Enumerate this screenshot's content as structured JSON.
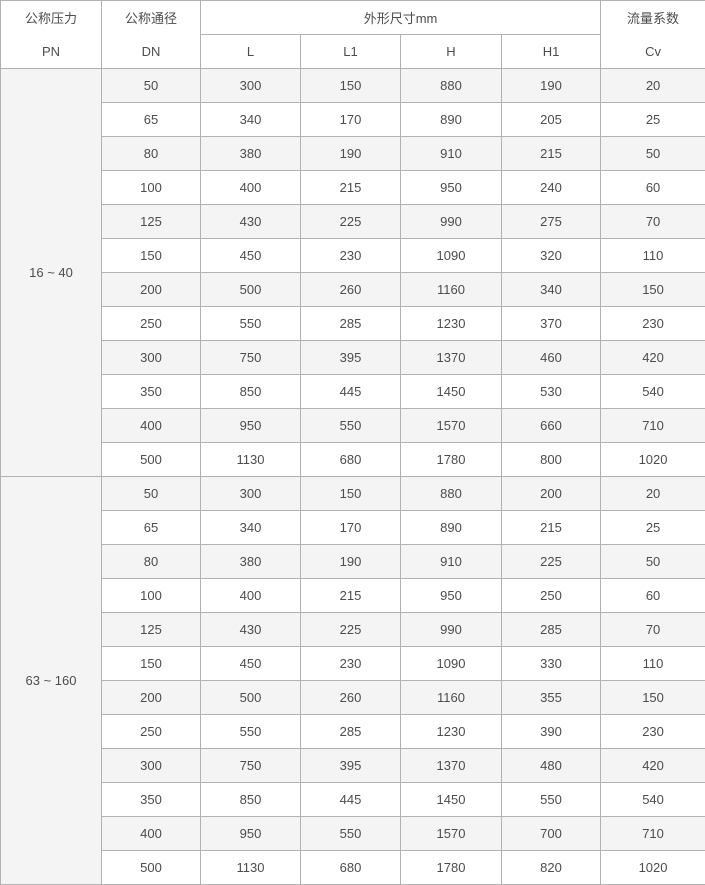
{
  "table": {
    "header": {
      "pressure_name": "公称压力",
      "pressure_code": "PN",
      "diameter_name": "公称通径",
      "diameter_code": "DN",
      "dimensions_title": "外形尺寸mm",
      "sub": [
        "L",
        "L1",
        "H",
        "H1"
      ],
      "flow_name": "流量系数",
      "flow_code": "Cv"
    },
    "groups": [
      {
        "pn": "16 ~ 40",
        "rows": [
          [
            "50",
            "300",
            "150",
            "880",
            "190",
            "20"
          ],
          [
            "65",
            "340",
            "170",
            "890",
            "205",
            "25"
          ],
          [
            "80",
            "380",
            "190",
            "910",
            "215",
            "50"
          ],
          [
            "100",
            "400",
            "215",
            "950",
            "240",
            "60"
          ],
          [
            "125",
            "430",
            "225",
            "990",
            "275",
            "70"
          ],
          [
            "150",
            "450",
            "230",
            "1090",
            "320",
            "110"
          ],
          [
            "200",
            "500",
            "260",
            "1160",
            "340",
            "150"
          ],
          [
            "250",
            "550",
            "285",
            "1230",
            "370",
            "230"
          ],
          [
            "300",
            "750",
            "395",
            "1370",
            "460",
            "420"
          ],
          [
            "350",
            "850",
            "445",
            "1450",
            "530",
            "540"
          ],
          [
            "400",
            "950",
            "550",
            "1570",
            "660",
            "710"
          ],
          [
            "500",
            "1130",
            "680",
            "1780",
            "800",
            "1020"
          ]
        ]
      },
      {
        "pn": "63 ~ 160",
        "rows": [
          [
            "50",
            "300",
            "150",
            "880",
            "200",
            "20"
          ],
          [
            "65",
            "340",
            "170",
            "890",
            "215",
            "25"
          ],
          [
            "80",
            "380",
            "190",
            "910",
            "225",
            "50"
          ],
          [
            "100",
            "400",
            "215",
            "950",
            "250",
            "60"
          ],
          [
            "125",
            "430",
            "225",
            "990",
            "285",
            "70"
          ],
          [
            "150",
            "450",
            "230",
            "1090",
            "330",
            "110"
          ],
          [
            "200",
            "500",
            "260",
            "1160",
            "355",
            "150"
          ],
          [
            "250",
            "550",
            "285",
            "1230",
            "390",
            "230"
          ],
          [
            "300",
            "750",
            "395",
            "1370",
            "480",
            "420"
          ],
          [
            "350",
            "850",
            "445",
            "1450",
            "550",
            "540"
          ],
          [
            "400",
            "950",
            "550",
            "1570",
            "700",
            "710"
          ],
          [
            "500",
            "1130",
            "680",
            "1780",
            "820",
            "1020"
          ]
        ]
      }
    ],
    "colors": {
      "row_shaded": "#f4f4f4",
      "row_plain": "#ffffff",
      "border": "#b2b2b2",
      "text": "#4d4d4d"
    }
  }
}
